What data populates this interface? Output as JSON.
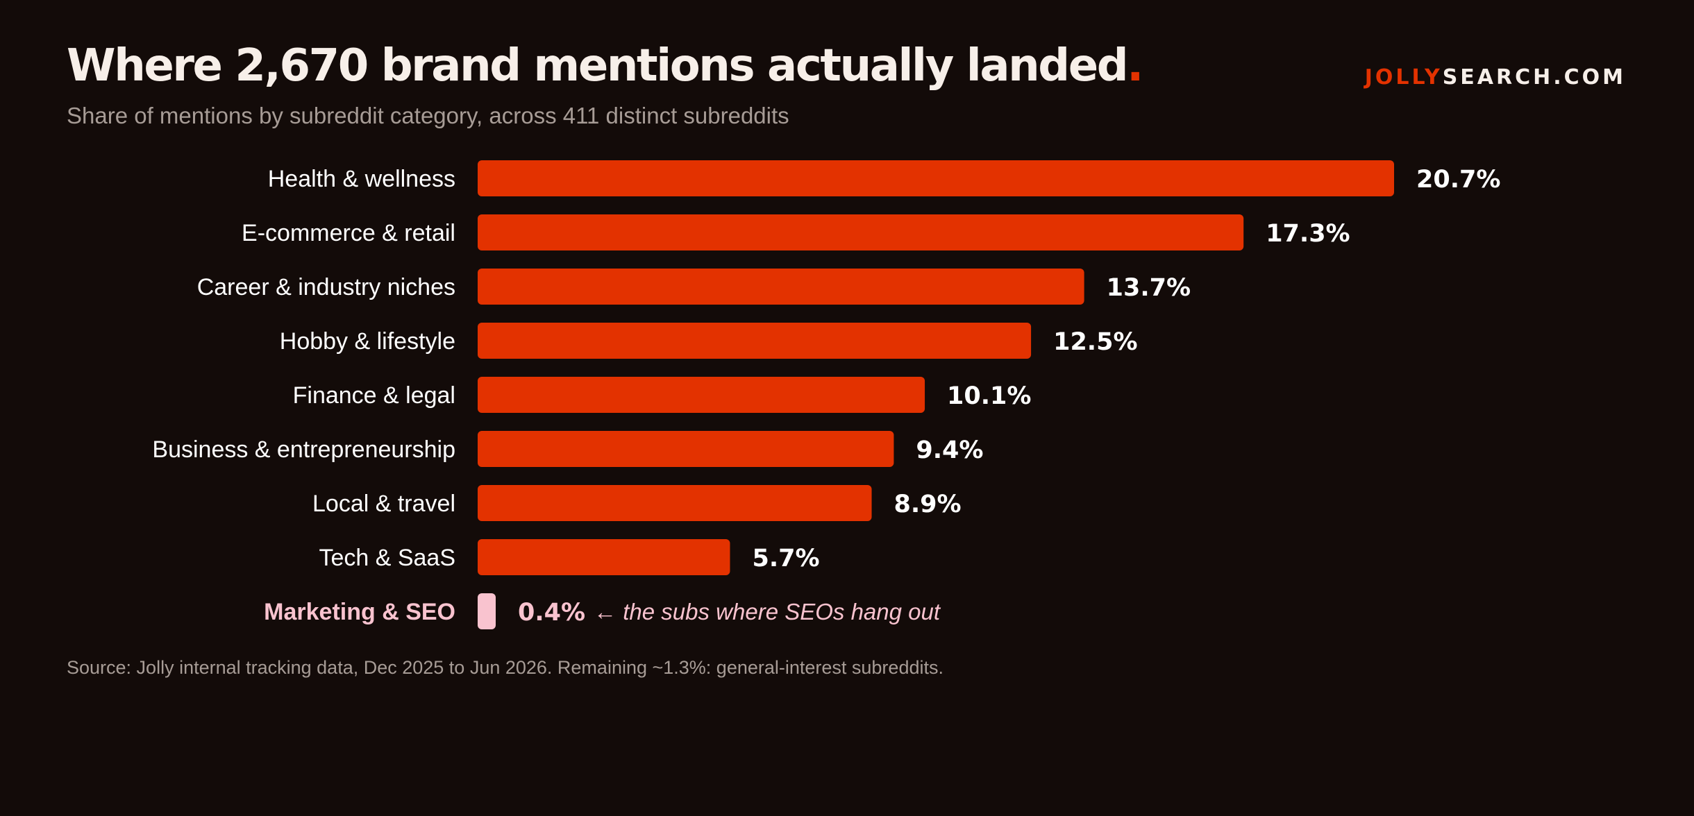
{
  "title": {
    "main": "Where 2,670 brand mentions actually landed",
    "end": "."
  },
  "subtitle": "Share of mentions by subreddit category, across 411 distinct subreddits",
  "brand": {
    "part1": "JOLLY",
    "part2": "SEARCH.COM"
  },
  "source": "Source: Jolly internal tracking data, Dec 2025 to Jun 2026. Remaining ~1.3%: general-interest subreddits.",
  "colors": {
    "bar": "#e33200",
    "highlight": "#f9c3cf",
    "background": "#130b09"
  },
  "chart_data": {
    "type": "bar",
    "orientation": "horizontal",
    "categories": [
      "Health & wellness",
      "E-commerce & retail",
      "Career & industry niches",
      "Hobby & lifestyle",
      "Finance & legal",
      "Business & entrepreneurship",
      "Local & travel",
      "Tech & SaaS",
      "Marketing & SEO"
    ],
    "values": [
      20.7,
      17.3,
      13.7,
      12.5,
      10.1,
      9.4,
      8.9,
      5.7,
      0.4
    ],
    "value_labels": [
      "20.7%",
      "17.3%",
      "13.7%",
      "12.5%",
      "10.1%",
      "9.4%",
      "8.9%",
      "5.7%",
      "0.4%"
    ],
    "highlight_index": 8,
    "annotation": {
      "index": 8,
      "text": "← the subs where SEOs hang out"
    },
    "xlim": [
      0,
      20.7
    ],
    "grid": false,
    "legend": "none"
  }
}
